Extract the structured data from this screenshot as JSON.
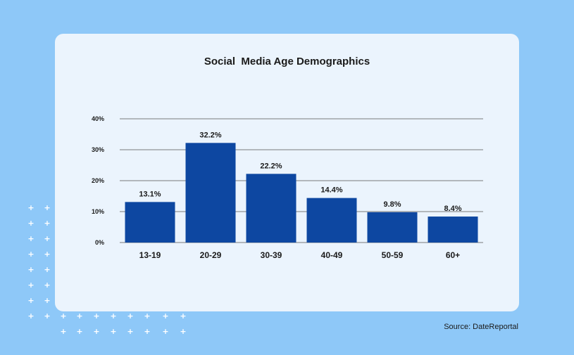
{
  "colors": {
    "background": "#8ec8f8",
    "card": "#ebf4fd",
    "bar": "#0d47a1",
    "gridline": "#7a7a7a",
    "text": "#1a1a1a",
    "dot": "#ffffff"
  },
  "chart_data": {
    "type": "bar",
    "title": "Social  Media Age Demographics",
    "xlabel": "",
    "ylabel": "",
    "categories": [
      "13-19",
      "20-29",
      "30-39",
      "40-49",
      "50-59",
      "60+"
    ],
    "values": [
      13.1,
      32.2,
      22.2,
      14.4,
      9.8,
      8.4
    ],
    "data_labels": [
      "13.1%",
      "32.2%",
      "22.2%",
      "14.4%",
      "9.8%",
      "8.4%"
    ],
    "ylim": [
      0,
      40
    ],
    "yticks": [
      0,
      10,
      20,
      30,
      40
    ],
    "ytick_labels": [
      "0%",
      "10%",
      "20%",
      "30%",
      "40%"
    ],
    "grid": true,
    "legend": "none"
  },
  "footer": {
    "source": "Source: DateReportal"
  },
  "decoration": {
    "pattern_icon": "plus-icon",
    "glyph": "+"
  }
}
